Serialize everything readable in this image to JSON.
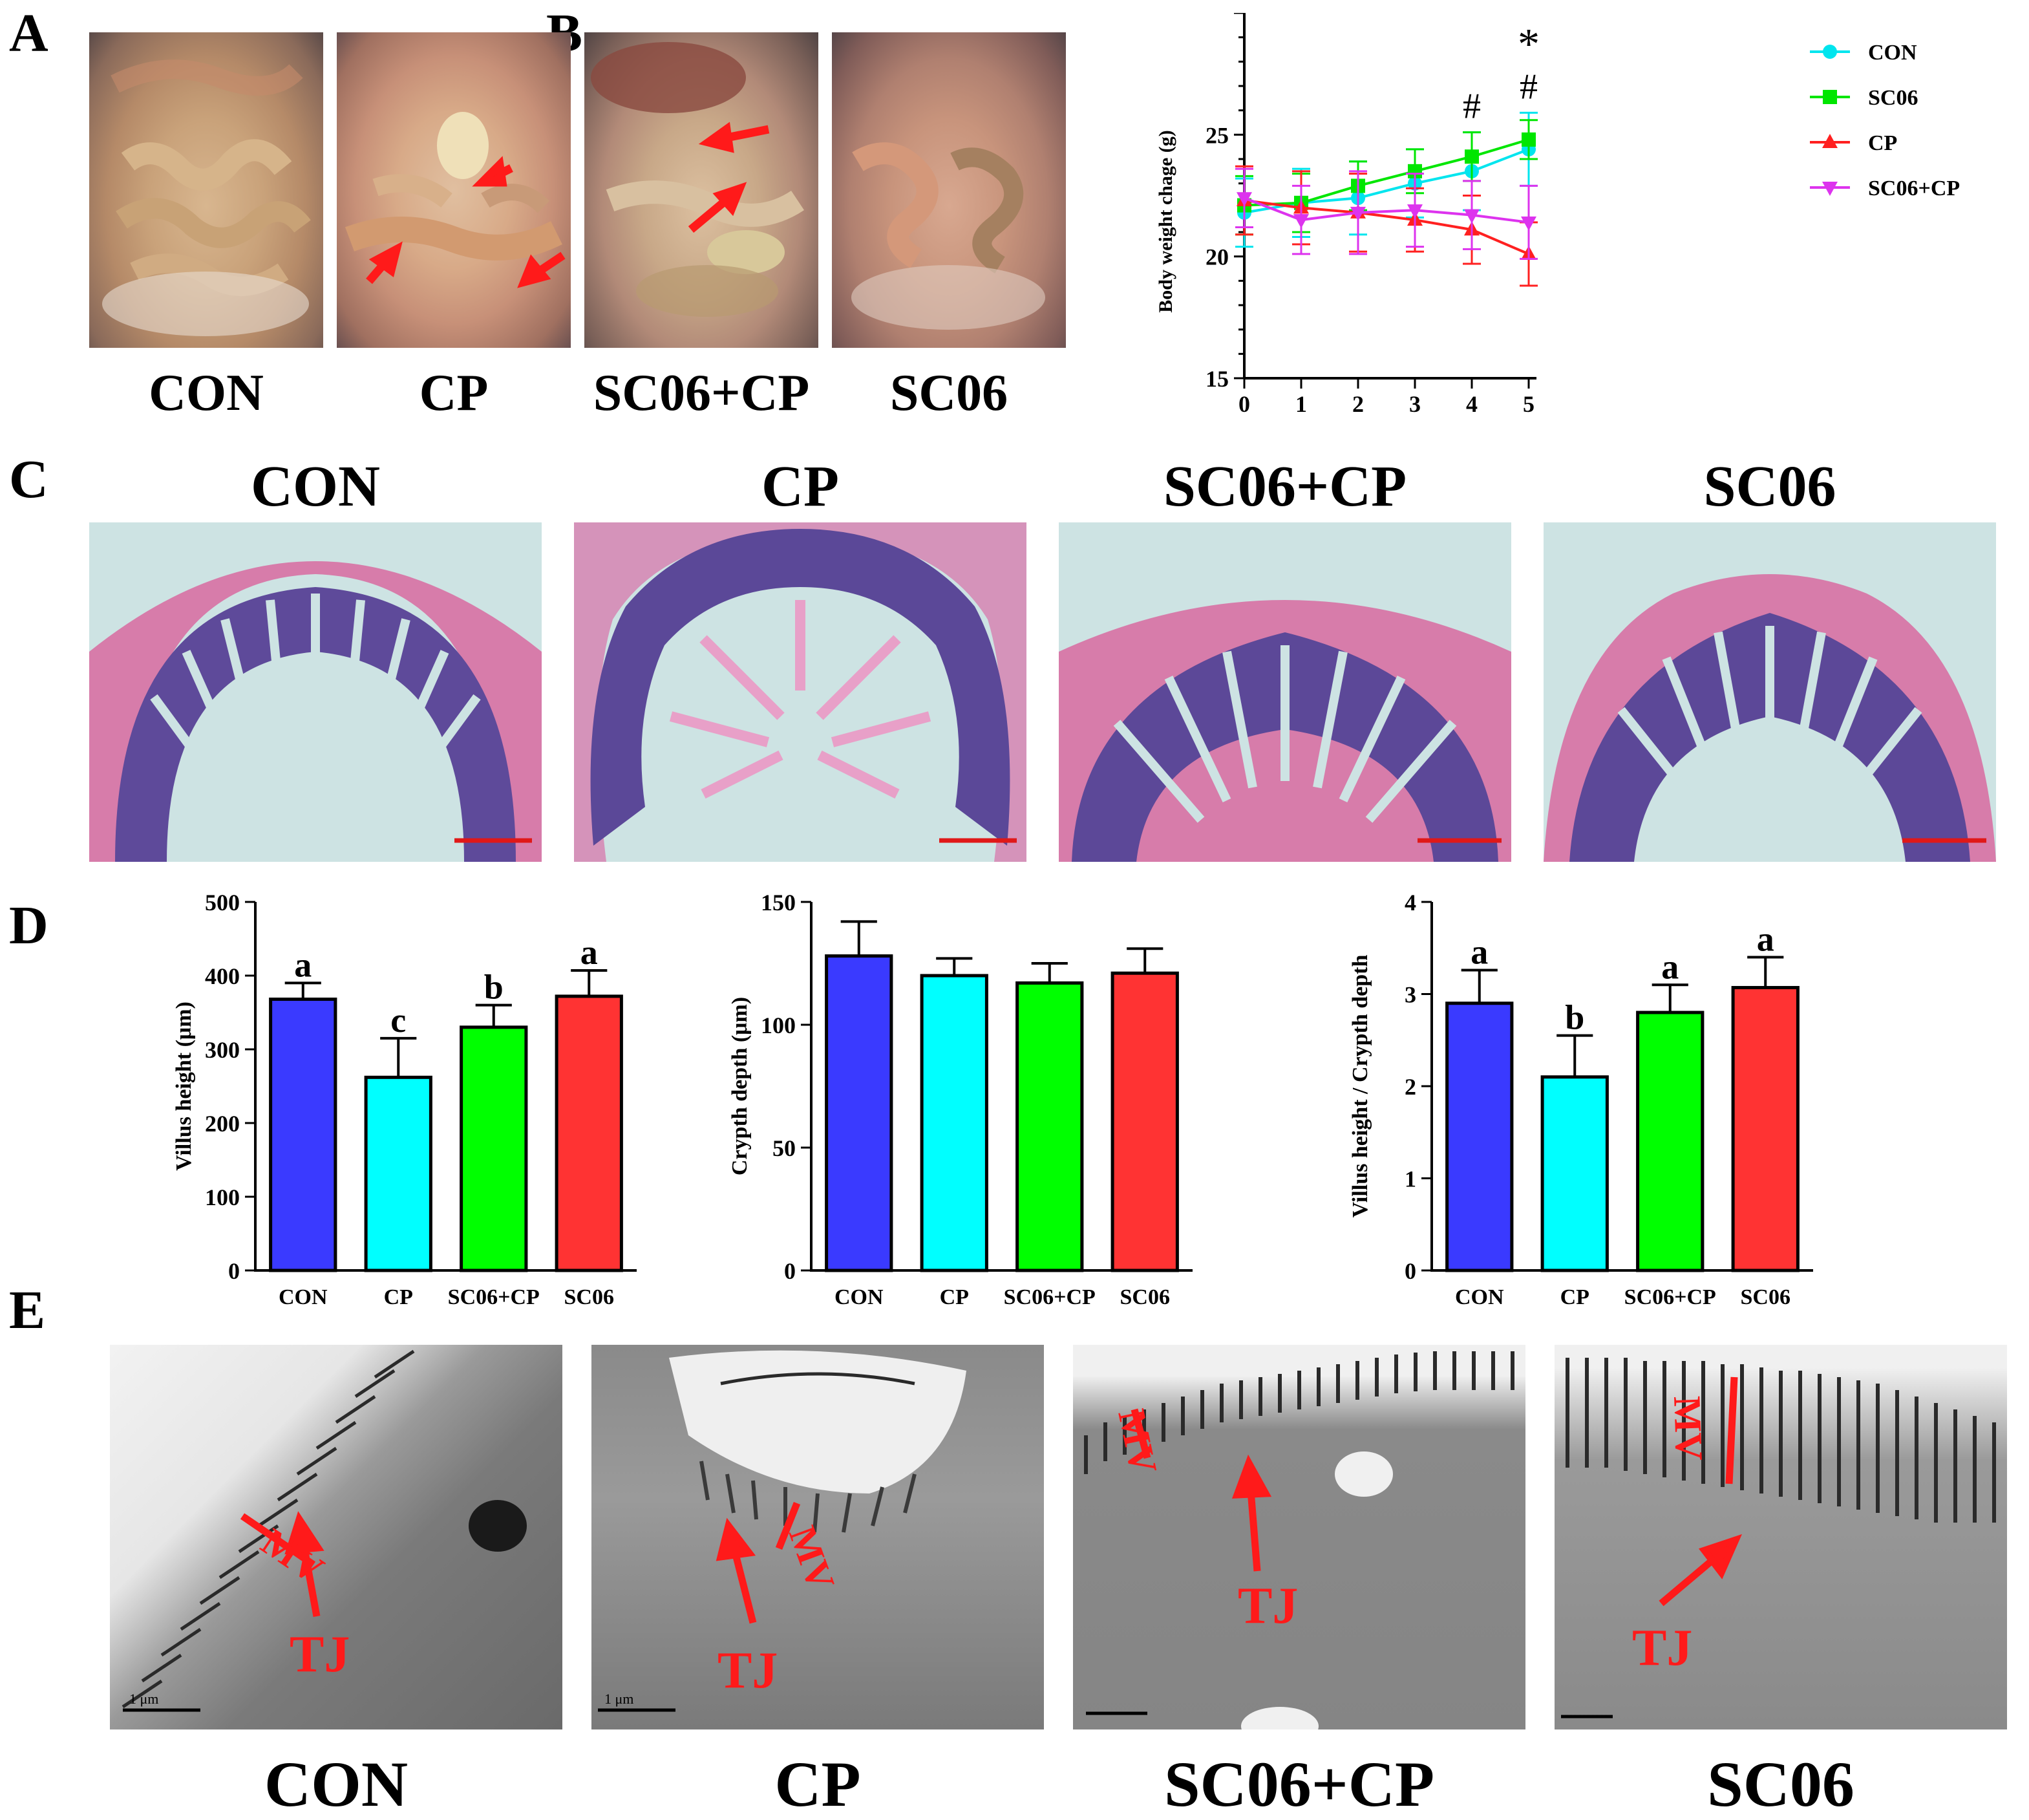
{
  "panels": {
    "A": "A",
    "B": "B",
    "C": "C",
    "D": "D",
    "E": "E"
  },
  "groups": [
    "CON",
    "CP",
    "SC06+CP",
    "SC06"
  ],
  "colors": {
    "CON": "#3a3aff",
    "CP": "#00ffff",
    "SC06+CP": "#00ff00",
    "SC06": "#ff3333",
    "arrow": "#ff1a1a"
  },
  "panelA": {
    "captions": [
      "CON",
      "CP",
      "SC06+CP",
      "SC06"
    ]
  },
  "panelC": {
    "captions": [
      "CON",
      "CP",
      "SC06+CP",
      "SC06"
    ]
  },
  "panelE": {
    "captions": [
      "CON",
      "CP",
      "SC06+CP",
      "SC06"
    ],
    "annotations": {
      "mv": "MV",
      "tj": "TJ",
      "scalebar": "1 μm"
    }
  },
  "chart_data": [
    {
      "id": "B",
      "type": "line",
      "title": "",
      "xlabel": "",
      "ylabel": "Body weight chage (g)",
      "x": [
        0,
        1,
        2,
        3,
        4,
        5
      ],
      "xticks": [
        "0",
        "1",
        "2",
        "3",
        "4",
        "5"
      ],
      "ylim": [
        15,
        30
      ],
      "yticks": [
        "15",
        "20",
        "25"
      ],
      "series": [
        {
          "name": "CON",
          "color": "#00e5ee",
          "marker": "circle",
          "values": [
            21.8,
            22.2,
            22.4,
            23.0,
            23.5,
            24.4
          ],
          "err": [
            1.4,
            1.4,
            1.5,
            1.4,
            1.6,
            1.5
          ]
        },
        {
          "name": "SC06",
          "color": "#00e600",
          "marker": "square",
          "values": [
            22.1,
            22.2,
            22.9,
            23.5,
            24.1,
            24.8
          ],
          "err": [
            1.2,
            1.2,
            1.0,
            0.9,
            1.0,
            0.8
          ]
        },
        {
          "name": "CP",
          "color": "#ff2020",
          "marker": "triangle-up",
          "values": [
            22.3,
            22.0,
            21.8,
            21.5,
            21.1,
            20.1
          ],
          "err": [
            1.4,
            1.5,
            1.6,
            1.3,
            1.4,
            1.3
          ]
        },
        {
          "name": "SC06+CP",
          "color": "#dd33ee",
          "marker": "triangle-down",
          "values": [
            22.4,
            21.5,
            21.8,
            21.9,
            21.7,
            21.4
          ],
          "err": [
            1.2,
            1.4,
            1.7,
            1.5,
            1.4,
            1.5
          ]
        }
      ],
      "annotations": [
        {
          "text": "#",
          "x": 4
        },
        {
          "text": "#",
          "x": 5
        },
        {
          "text": "*",
          "x": 5
        }
      ],
      "legend": "right"
    },
    {
      "id": "D1",
      "type": "bar",
      "categories": [
        "CON",
        "CP",
        "SC06+CP",
        "SC06"
      ],
      "values": [
        368,
        262,
        330,
        372
      ],
      "err": [
        22,
        53,
        30,
        35
      ],
      "letters": [
        "a",
        "c",
        "b",
        "a"
      ],
      "ylabel": "Villus height (μm)",
      "ylim": [
        0,
        500
      ],
      "yticks": [
        "0",
        "100",
        "200",
        "300",
        "400",
        "500"
      ]
    },
    {
      "id": "D2",
      "type": "bar",
      "categories": [
        "CON",
        "CP",
        "SC06+CP",
        "SC06"
      ],
      "values": [
        128,
        120,
        117,
        121
      ],
      "err": [
        14,
        7,
        8,
        10
      ],
      "letters": [
        "",
        "",
        "",
        ""
      ],
      "ylabel": "Crypth depth (μm)",
      "ylim": [
        0,
        150
      ],
      "yticks": [
        "0",
        "50",
        "100",
        "150"
      ]
    },
    {
      "id": "D3",
      "type": "bar",
      "categories": [
        "CON",
        "CP",
        "SC06+CP",
        "SC06"
      ],
      "values": [
        2.9,
        2.1,
        2.8,
        3.07
      ],
      "err": [
        0.36,
        0.45,
        0.3,
        0.33
      ],
      "letters": [
        "a",
        "b",
        "a",
        "a"
      ],
      "ylabel": "Villus height / Crypth depth",
      "ylim": [
        0,
        4
      ],
      "yticks": [
        "0",
        "1",
        "2",
        "3",
        "4"
      ]
    }
  ]
}
